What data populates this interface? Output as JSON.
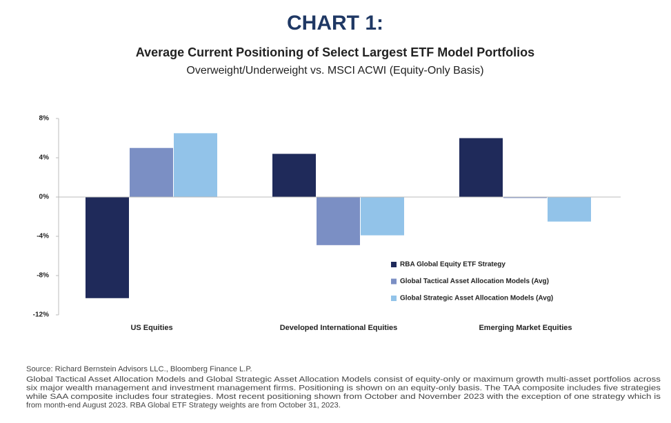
{
  "chart_data": {
    "type": "bar",
    "title": "CHART 1:",
    "subtitle": "Average Current Positioning of Select Largest ETF Model Portfolios",
    "subtitle2": "Overweight/Underweight vs. MSCI ACWI (Equity-Only Basis)",
    "categories": [
      "US Equities",
      "Developed International Equities",
      "Emerging Market Equities"
    ],
    "series": [
      {
        "name": "RBA Global Equity ETF Strategy",
        "color": "#1f2a5a",
        "values": [
          -10.3,
          4.4,
          6.0
        ]
      },
      {
        "name": "Global Tactical Asset Allocation Models (Avg)",
        "color": "#7b8fc4",
        "values": [
          5.0,
          -4.9,
          -0.1
        ]
      },
      {
        "name": "Global Strategic Asset Allocation Models (Avg)",
        "color": "#92c3e9",
        "values": [
          6.5,
          -3.9,
          -2.5
        ]
      }
    ],
    "ylim": [
      -12,
      8
    ],
    "yticks": [
      {
        "value": 8,
        "label": "8%"
      },
      {
        "value": 4,
        "label": "4%"
      },
      {
        "value": 0,
        "label": "0%"
      },
      {
        "value": -4,
        "label": "-4%"
      },
      {
        "value": -8,
        "label": "-8%"
      },
      {
        "value": -12,
        "label": "-12%"
      }
    ],
    "legend": "lower-right",
    "source": "Source:  Richard Bernstein Advisors LLC., Bloomberg Finance L.P.",
    "notes": [
      "Global Tactical Asset Allocation Models and Global Strategic Asset Allocation Models consist of equity-only or maximum growth multi-asset portfolios across",
      "six major wealth management and investment management firms. Positioning is shown on an equity-only basis. The TAA composite includes five strategies",
      "while SAA composite includes four strategies. Most recent positioning shown from October and November 2023 with the exception of one strategy which is",
      "from month-end August 2023. RBA Global ETF Strategy weights are from October 31, 2023."
    ]
  }
}
